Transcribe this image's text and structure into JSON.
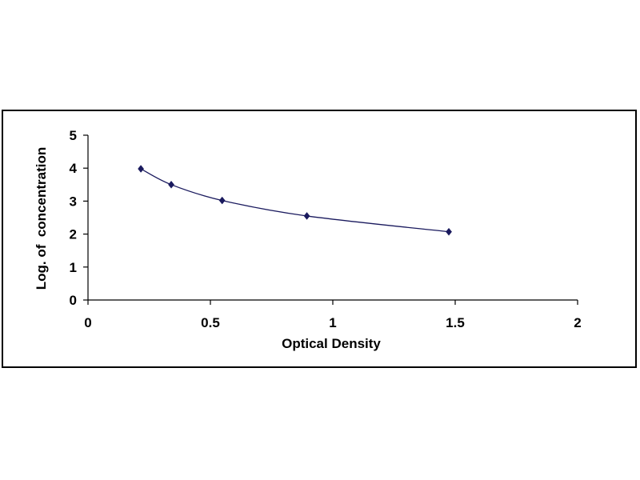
{
  "chart_data": {
    "type": "scatter",
    "title": "",
    "xlabel": "Optical Density",
    "ylabel": "Log. of  concentration",
    "xlim": [
      0,
      2
    ],
    "ylim": [
      0,
      5
    ],
    "x_ticks": [
      0,
      0.5,
      1,
      1.5,
      2
    ],
    "y_ticks": [
      0,
      1,
      2,
      3,
      4,
      5
    ],
    "x_tick_labels": [
      "0",
      "0.5",
      "1",
      "1.5",
      "2"
    ],
    "y_tick_labels": [
      "0",
      "1",
      "2",
      "3",
      "4",
      "5"
    ],
    "grid": false,
    "legend": "none",
    "series": [
      {
        "points": [
          {
            "x": 0.216,
            "y": 3.98
          },
          {
            "x": 0.34,
            "y": 3.5
          },
          {
            "x": 0.548,
            "y": 3.02
          },
          {
            "x": 0.894,
            "y": 2.55
          },
          {
            "x": 1.474,
            "y": 2.07
          }
        ],
        "marker": "diamond",
        "trendline": "smooth",
        "color": "#1a1a5e"
      }
    ]
  }
}
